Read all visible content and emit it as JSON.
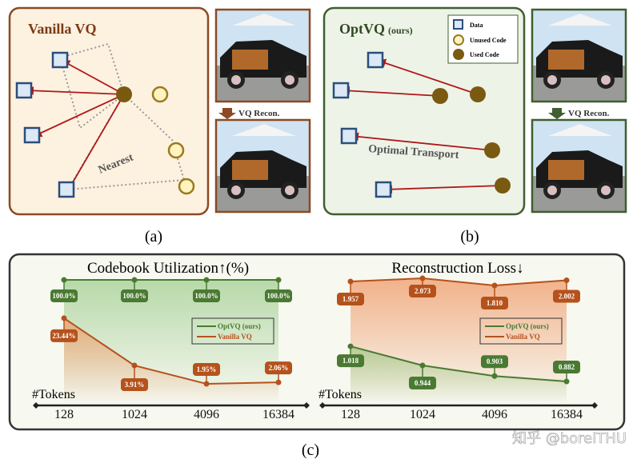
{
  "panel_a": {
    "title": "Vanilla VQ",
    "nearest": "Nearest",
    "recon": "VQ Recon.",
    "caption": "(a)"
  },
  "panel_b": {
    "title": "OptVQ",
    "title_suffix": "(ours)",
    "transport": "Optimal Transport",
    "recon": "VQ Recon.",
    "caption": "(b)",
    "legend": {
      "data": "Data",
      "unused": "Unused Code",
      "used": "Used Code"
    }
  },
  "panel_c": {
    "caption": "(c)",
    "legend": {
      "optvq": "OptVQ (ours)",
      "vanilla": "Vanilla VQ"
    },
    "xlabel": "#Tokens"
  },
  "colors": {
    "optvq": "#4a7a32",
    "vanilla": "#b5521c",
    "data_stroke": "#2a4f7a",
    "used_code": "#7a5a10",
    "arrow": "#b01818"
  },
  "chart_data": [
    {
      "type": "line",
      "title": "Codebook Utilization↑(%)",
      "xlabel": "#Tokens",
      "categories": [
        "128",
        "1024",
        "4096",
        "16384"
      ],
      "yscale": "log",
      "series": [
        {
          "name": "OptVQ (ours)",
          "values": [
            100.0,
            100.0,
            100.0,
            100.0
          ],
          "labels": [
            "100.0%",
            "100.0%",
            "100.0%",
            "100.0%"
          ]
        },
        {
          "name": "Vanilla VQ",
          "values": [
            23.44,
            3.91,
            1.95,
            2.06
          ],
          "labels": [
            "23.44%",
            "3.91%",
            "1.95%",
            "2.06%"
          ]
        }
      ],
      "legend": "right"
    },
    {
      "type": "line",
      "title": "Reconstruction Loss↓",
      "xlabel": "#Tokens",
      "categories": [
        "128",
        "1024",
        "4096",
        "16384"
      ],
      "series": [
        {
          "name": "OptVQ (ours)",
          "values": [
            1.018,
            0.944,
            0.903,
            0.882
          ],
          "labels": [
            "1.018",
            "0.944",
            "0.903",
            "0.882"
          ]
        },
        {
          "name": "Vanilla VQ",
          "values": [
            1.957,
            2.073,
            1.81,
            2.002
          ],
          "labels": [
            "1.957",
            "2.073",
            "1.810",
            "2.002"
          ]
        }
      ],
      "legend": "right"
    }
  ],
  "watermark": "知乎 @borelTHU"
}
